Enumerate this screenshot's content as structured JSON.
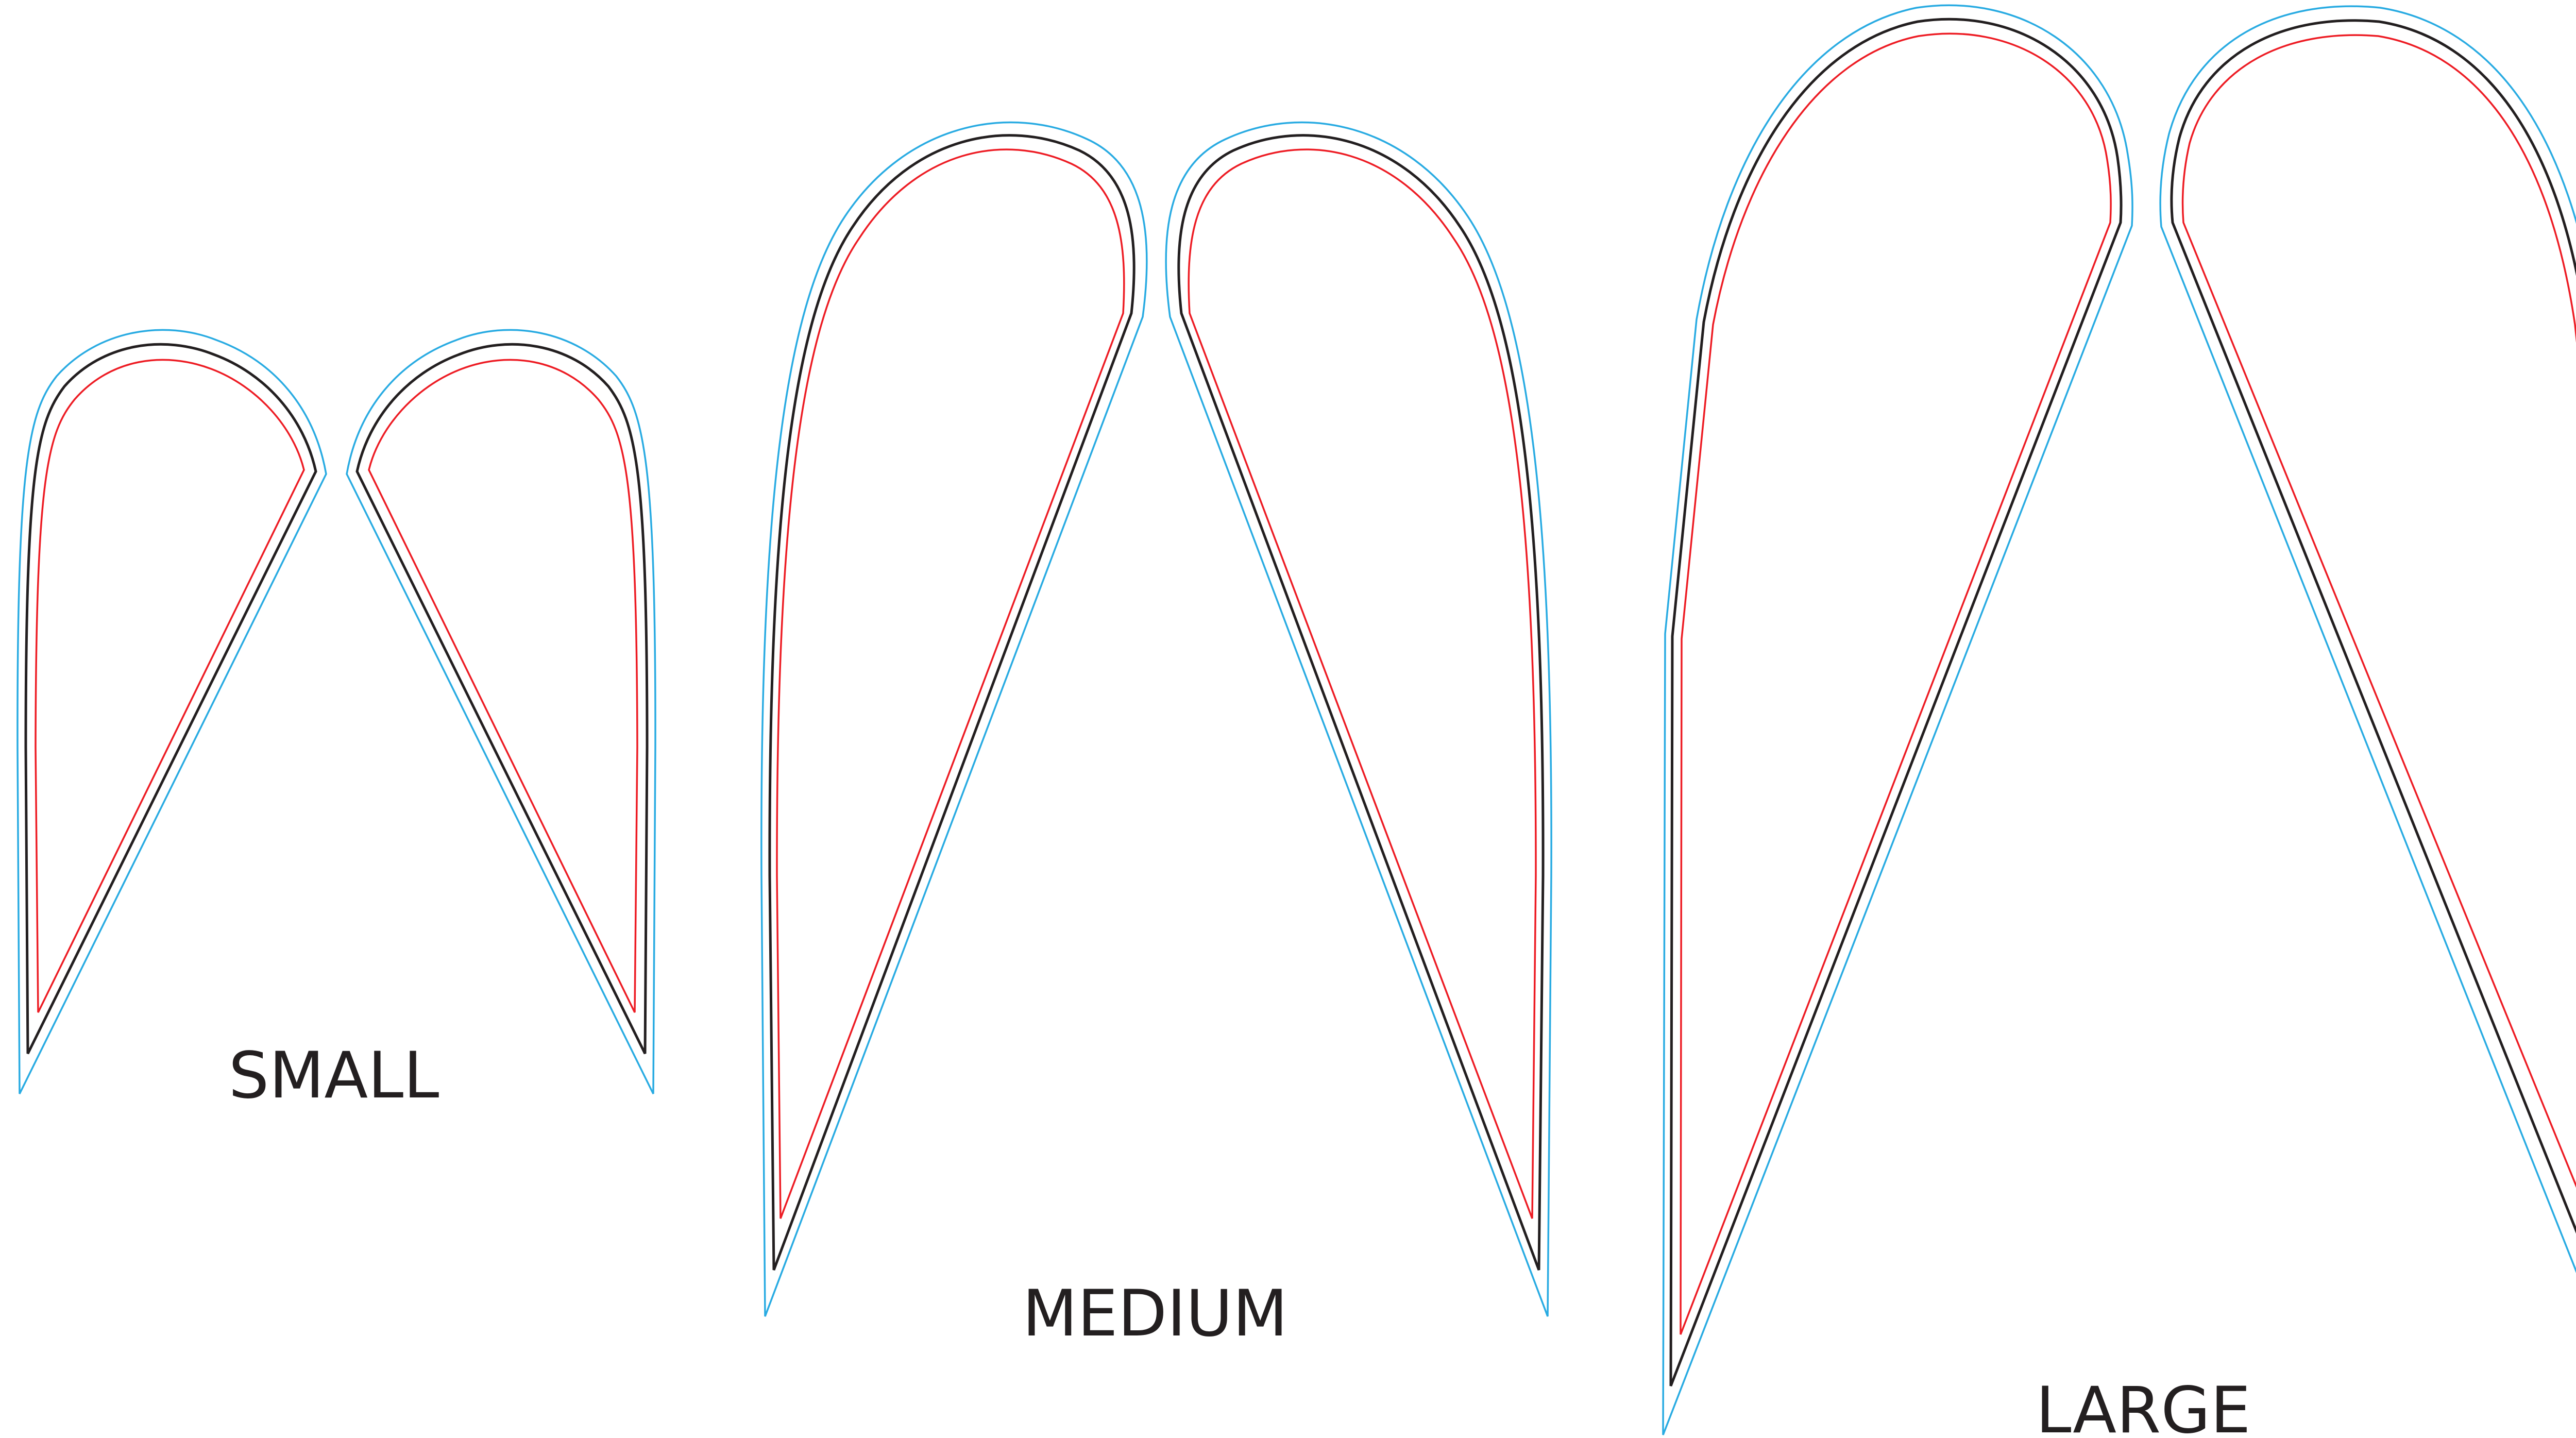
{
  "labels": {
    "small": "SMALL",
    "medium": "MEDIUM",
    "large": "LARGE"
  },
  "colors": {
    "outer_line": "#29abe2",
    "mid_line": "#231f20",
    "inner_line": "#ed1c24",
    "label_text": "#231f20",
    "background": "#ffffff"
  }
}
